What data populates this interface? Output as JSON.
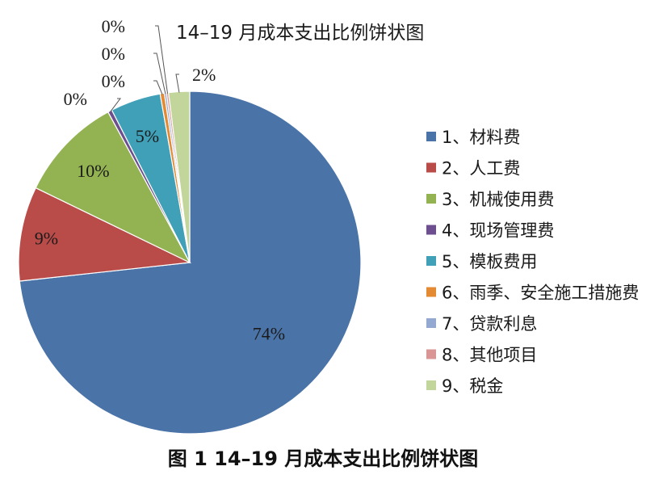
{
  "chart_data": {
    "type": "pie",
    "title": "14–19 月成本支出比例饼状图",
    "start_angle_deg": 0,
    "direction": "clockwise",
    "legend_position": "right",
    "slices": [
      {
        "name": "1、材料费",
        "value": 74.0,
        "label": "74%",
        "color": "#4a73a8"
      },
      {
        "name": "2、人工费",
        "value": 9.0,
        "label": "9%",
        "color": "#b94b49"
      },
      {
        "name": "3、机械使用费",
        "value": 10.0,
        "label": "10%",
        "color": "#93b352"
      },
      {
        "name": "4、现场管理费",
        "value": 0.4,
        "label": "0%",
        "color": "#6d4f8f"
      },
      {
        "name": "5、模板费用",
        "value": 4.8,
        "label": "5%",
        "color": "#3fa0b8"
      },
      {
        "name": "6、雨季、安全施工措施费",
        "value": 0.4,
        "label": "0%",
        "color": "#e38a33"
      },
      {
        "name": "7、贷款利息",
        "value": 0.2,
        "label": "0%",
        "color": "#93a9d2"
      },
      {
        "name": "8、其他项目",
        "value": 0.2,
        "label": "0%",
        "color": "#d99694"
      },
      {
        "name": "9、税金",
        "value": 2.0,
        "label": "2%",
        "color": "#c2d59a"
      }
    ]
  },
  "caption": "图 1   14–19 月成本支出比例饼状图"
}
